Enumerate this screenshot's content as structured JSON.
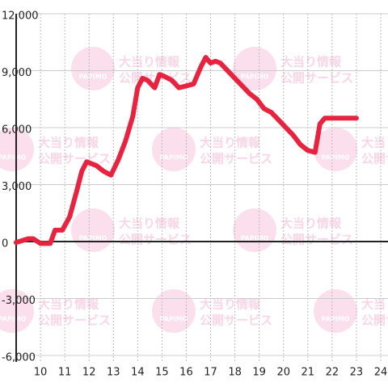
{
  "chart_data": {
    "type": "line",
    "x": [
      9.0,
      9.5,
      9.7,
      10.0,
      10.4,
      10.6,
      10.9,
      11.2,
      11.5,
      11.7,
      11.9,
      12.3,
      12.6,
      12.9,
      13.2,
      13.5,
      13.8,
      14.0,
      14.2,
      14.4,
      14.7,
      14.9,
      15.1,
      15.4,
      15.7,
      16.0,
      16.3,
      16.6,
      16.8,
      17.0,
      17.2,
      17.4,
      17.7,
      18.0,
      18.3,
      18.6,
      18.9,
      19.2,
      19.5,
      19.8,
      20.1,
      20.4,
      20.7,
      21.0,
      21.3,
      21.5,
      21.7,
      22.5,
      23.0
    ],
    "values": [
      -50,
      150,
      150,
      -100,
      -100,
      600,
      600,
      1300,
      2700,
      3700,
      4200,
      4000,
      3700,
      3500,
      4300,
      5300,
      6600,
      8100,
      8600,
      8500,
      8100,
      8800,
      8700,
      8500,
      8100,
      8200,
      8300,
      9200,
      9700,
      9400,
      9500,
      9400,
      9000,
      8600,
      8200,
      7800,
      7500,
      7000,
      6800,
      6400,
      6000,
      5600,
      5100,
      4800,
      4700,
      6200,
      6500,
      6500,
      6500
    ],
    "color": "#e8233f",
    "xlim": [
      9,
      24.3
    ],
    "ylim": [
      -6000,
      12000
    ],
    "xticks": [
      10,
      11,
      12,
      13,
      14,
      15,
      16,
      17,
      18,
      19,
      20,
      21,
      22,
      23,
      24
    ],
    "yticks": [
      {
        "value": -6000,
        "label": "-6,000"
      },
      {
        "value": -3000,
        "label": "-3,000"
      },
      0,
      {
        "value": 3000,
        "label": "3,000"
      },
      {
        "value": 6000,
        "label": "6,000"
      },
      {
        "value": 9000,
        "label": "9,000"
      },
      {
        "value": 12000,
        "label": "12,000"
      }
    ],
    "grid": true,
    "watermark": [
      "大当り情報",
      "公開サービス",
      "PAPIMO"
    ]
  }
}
